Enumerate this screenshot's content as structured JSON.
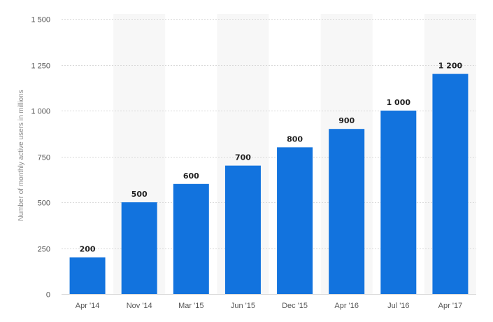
{
  "chart_data": {
    "type": "bar",
    "categories": [
      "Apr '14",
      "Nov '14",
      "Mar '15",
      "Jun '15",
      "Dec '15",
      "Apr '16",
      "Jul '16",
      "Apr '17"
    ],
    "values": [
      200,
      500,
      600,
      700,
      800,
      900,
      1000,
      1200
    ],
    "value_labels": [
      "200",
      "500",
      "600",
      "700",
      "800",
      "900",
      "1 000",
      "1 200"
    ],
    "title": "",
    "xlabel": "",
    "ylabel": "Number of monthly active users in millions",
    "ylim": [
      0,
      1500
    ],
    "yticks": [
      0,
      250,
      500,
      750,
      1000,
      1250,
      1500
    ],
    "ytick_labels": [
      "0",
      "250",
      "500",
      "750",
      "1 000",
      "1 250",
      "1 500"
    ],
    "grid": true,
    "legend": "none",
    "colors": {
      "bar": "#1273de",
      "band": "#f7f7f7",
      "grid": "#d9d9d9"
    }
  }
}
